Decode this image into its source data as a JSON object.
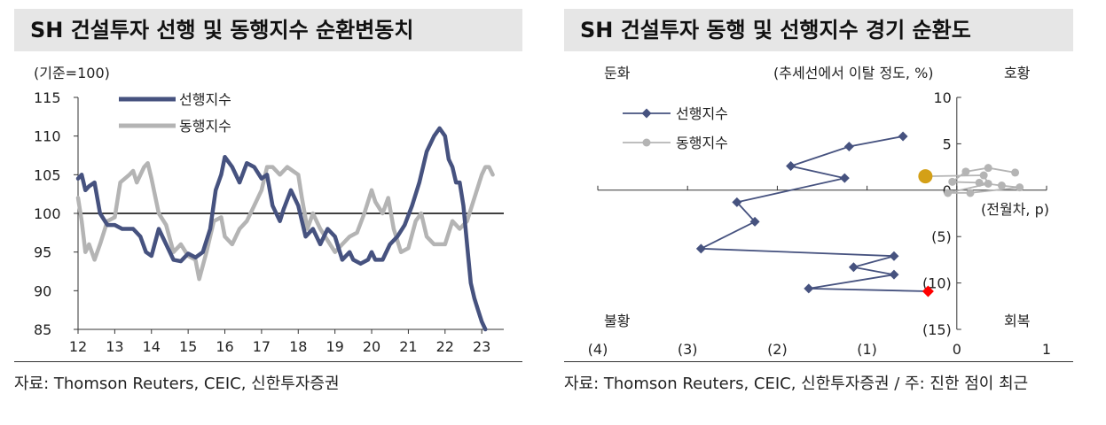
{
  "left": {
    "title": "SH 건설투자 선행 및 동행지수 순환변동치",
    "source": "자료: Thomson Reuters, CEIC, 신한투자증권",
    "unit": "(기준=100)",
    "chart_data": {
      "type": "line",
      "title": "SH 건설투자 선행 및 동행지수 순환변동치",
      "ylabel": "(기준=100)",
      "ylim": [
        85,
        115
      ],
      "yticks": [
        85,
        90,
        95,
        100,
        105,
        110,
        115
      ],
      "xlim": [
        2012,
        2023.6
      ],
      "xticks": [
        2012,
        2013,
        2014,
        2015,
        2016,
        2017,
        2018,
        2019,
        2020,
        2021,
        2022,
        2023
      ],
      "xtick_labels": [
        "12",
        "13",
        "14",
        "15",
        "16",
        "17",
        "18",
        "19",
        "20",
        "21",
        "22",
        "23"
      ],
      "reference_line": 100,
      "legend_position": "top-left",
      "series": [
        {
          "name": "선행지수",
          "color": "#46527f",
          "points": [
            [
              2012.0,
              104.5
            ],
            [
              2012.1,
              105
            ],
            [
              2012.2,
              103
            ],
            [
              2012.3,
              103.5
            ],
            [
              2012.45,
              104
            ],
            [
              2012.6,
              100
            ],
            [
              2012.8,
              98.5
            ],
            [
              2013.0,
              98.5
            ],
            [
              2013.2,
              98
            ],
            [
              2013.5,
              98
            ],
            [
              2013.7,
              97
            ],
            [
              2013.85,
              95
            ],
            [
              2014.0,
              94.5
            ],
            [
              2014.2,
              98
            ],
            [
              2014.4,
              96
            ],
            [
              2014.6,
              94
            ],
            [
              2014.8,
              93.8
            ],
            [
              2015.0,
              94.8
            ],
            [
              2015.2,
              94.3
            ],
            [
              2015.4,
              95
            ],
            [
              2015.6,
              98
            ],
            [
              2015.75,
              103
            ],
            [
              2015.9,
              105
            ],
            [
              2016.0,
              107.3
            ],
            [
              2016.2,
              106
            ],
            [
              2016.4,
              104
            ],
            [
              2016.6,
              106.5
            ],
            [
              2016.8,
              106
            ],
            [
              2017.0,
              104.5
            ],
            [
              2017.15,
              105
            ],
            [
              2017.3,
              101
            ],
            [
              2017.5,
              99
            ],
            [
              2017.6,
              100.5
            ],
            [
              2017.8,
              103
            ],
            [
              2018.0,
              101
            ],
            [
              2018.2,
              97
            ],
            [
              2018.4,
              98
            ],
            [
              2018.6,
              96
            ],
            [
              2018.8,
              98
            ],
            [
              2019.0,
              97
            ],
            [
              2019.2,
              94
            ],
            [
              2019.4,
              95
            ],
            [
              2019.5,
              94
            ],
            [
              2019.7,
              93.5
            ],
            [
              2019.9,
              94
            ],
            [
              2020.0,
              95
            ],
            [
              2020.1,
              94
            ],
            [
              2020.3,
              94
            ],
            [
              2020.5,
              96
            ],
            [
              2020.7,
              97
            ],
            [
              2020.9,
              98.5
            ],
            [
              2021.1,
              101
            ],
            [
              2021.3,
              104
            ],
            [
              2021.5,
              108
            ],
            [
              2021.7,
              110
            ],
            [
              2021.85,
              111
            ],
            [
              2022.0,
              110
            ],
            [
              2022.1,
              107
            ],
            [
              2022.2,
              106
            ],
            [
              2022.3,
              104
            ],
            [
              2022.4,
              104
            ],
            [
              2022.5,
              101
            ],
            [
              2022.6,
              96
            ],
            [
              2022.7,
              91
            ],
            [
              2022.8,
              89
            ],
            [
              2022.9,
              87.5
            ],
            [
              2023.0,
              86
            ],
            [
              2023.1,
              85
            ]
          ]
        },
        {
          "name": "동행지수",
          "color": "#b4b4b4",
          "points": [
            [
              2012.0,
              102
            ],
            [
              2012.1,
              99
            ],
            [
              2012.2,
              95
            ],
            [
              2012.3,
              96
            ],
            [
              2012.45,
              94
            ],
            [
              2012.6,
              96
            ],
            [
              2012.8,
              99
            ],
            [
              2013.0,
              99.5
            ],
            [
              2013.15,
              104
            ],
            [
              2013.4,
              105
            ],
            [
              2013.5,
              105.5
            ],
            [
              2013.6,
              104
            ],
            [
              2013.8,
              106
            ],
            [
              2013.9,
              106.5
            ],
            [
              2014.0,
              104.5
            ],
            [
              2014.2,
              100
            ],
            [
              2014.4,
              98.5
            ],
            [
              2014.6,
              95
            ],
            [
              2014.8,
              96
            ],
            [
              2015.0,
              94.5
            ],
            [
              2015.2,
              94
            ],
            [
              2015.3,
              91.5
            ],
            [
              2015.5,
              95
            ],
            [
              2015.7,
              99
            ],
            [
              2015.9,
              99.5
            ],
            [
              2016.0,
              97
            ],
            [
              2016.2,
              96
            ],
            [
              2016.4,
              98
            ],
            [
              2016.6,
              99
            ],
            [
              2016.8,
              101
            ],
            [
              2017.0,
              103
            ],
            [
              2017.15,
              106
            ],
            [
              2017.3,
              106
            ],
            [
              2017.5,
              105
            ],
            [
              2017.7,
              106
            ],
            [
              2017.85,
              105.5
            ],
            [
              2018.0,
              105
            ],
            [
              2018.1,
              102
            ],
            [
              2018.25,
              98
            ],
            [
              2018.4,
              100
            ],
            [
              2018.6,
              98
            ],
            [
              2018.8,
              96.5
            ],
            [
              2019.0,
              95
            ],
            [
              2019.2,
              96
            ],
            [
              2019.4,
              97
            ],
            [
              2019.6,
              97.5
            ],
            [
              2019.8,
              100
            ],
            [
              2020.0,
              103
            ],
            [
              2020.1,
              101.5
            ],
            [
              2020.3,
              100
            ],
            [
              2020.45,
              102
            ],
            [
              2020.6,
              98
            ],
            [
              2020.8,
              95
            ],
            [
              2021.0,
              95.5
            ],
            [
              2021.2,
              99
            ],
            [
              2021.35,
              100
            ],
            [
              2021.5,
              97
            ],
            [
              2021.7,
              96
            ],
            [
              2021.85,
              96
            ],
            [
              2022.0,
              96
            ],
            [
              2022.2,
              99
            ],
            [
              2022.4,
              98
            ],
            [
              2022.6,
              99
            ],
            [
              2022.8,
              102
            ],
            [
              2023.0,
              105
            ],
            [
              2023.1,
              106
            ],
            [
              2023.2,
              106
            ],
            [
              2023.3,
              105
            ]
          ]
        }
      ]
    }
  },
  "right": {
    "title": "SH 건설투자 동행 및 선행지수 경기 순환도",
    "source": "자료: Thomson Reuters, CEIC, 신한투자증권 / 주: 진한 점이 최근",
    "y_unit": "(추세선에서 이탈 정도, %)",
    "x_unit": "(전월차, p)",
    "quadrants": {
      "top_left": "둔화",
      "top_right": "호황",
      "bottom_left": "불황",
      "bottom_right": "회복"
    },
    "chart_data": {
      "type": "scatter",
      "title": "SH 건설투자 동행 및 선행지수 경기 순환도",
      "xlabel": "(전월차, p)",
      "ylabel": "(추세선에서 이탈 정도, %)",
      "xlim": [
        -4,
        1
      ],
      "ylim": [
        -15,
        10
      ],
      "xticks": [
        -4,
        -3,
        -2,
        -1,
        0,
        1
      ],
      "xtick_labels": [
        "(4)",
        "(3)",
        "(2)",
        "(1)",
        "0",
        "1"
      ],
      "yticks": [
        10,
        5,
        0,
        -5,
        -10,
        -15
      ],
      "ytick_labels": [
        "10",
        "5",
        "0",
        "(5)",
        "(10)",
        "(15)"
      ],
      "legend_position": "top-left",
      "series": [
        {
          "name": "선행지수",
          "color": "#46527f",
          "latest_color": "#ff0000",
          "points": [
            [
              -0.6,
              5.8
            ],
            [
              -1.2,
              4.7
            ],
            [
              -1.85,
              2.6
            ],
            [
              -1.25,
              1.3
            ],
            [
              -2.45,
              -1.3
            ],
            [
              -2.25,
              -3.4
            ],
            [
              -2.85,
              -6.3
            ],
            [
              -0.7,
              -7.1
            ],
            [
              -1.15,
              -8.3
            ],
            [
              -0.7,
              -9.1
            ],
            [
              -1.65,
              -10.6
            ],
            [
              -0.32,
              -10.9
            ]
          ]
        },
        {
          "name": "동행지수",
          "color": "#b4b4b4",
          "latest_color": "#d4a017",
          "points": [
            [
              0.65,
              1.9
            ],
            [
              0.35,
              2.4
            ],
            [
              0.1,
              2.0
            ],
            [
              -0.05,
              0.9
            ],
            [
              0.25,
              0.8
            ],
            [
              0.5,
              0.5
            ],
            [
              0.7,
              0.3
            ],
            [
              0.15,
              -0.3
            ],
            [
              -0.1,
              -0.3
            ],
            [
              0.35,
              0.7
            ],
            [
              0.3,
              1.6
            ],
            [
              -0.35,
              1.5
            ]
          ]
        }
      ]
    }
  }
}
